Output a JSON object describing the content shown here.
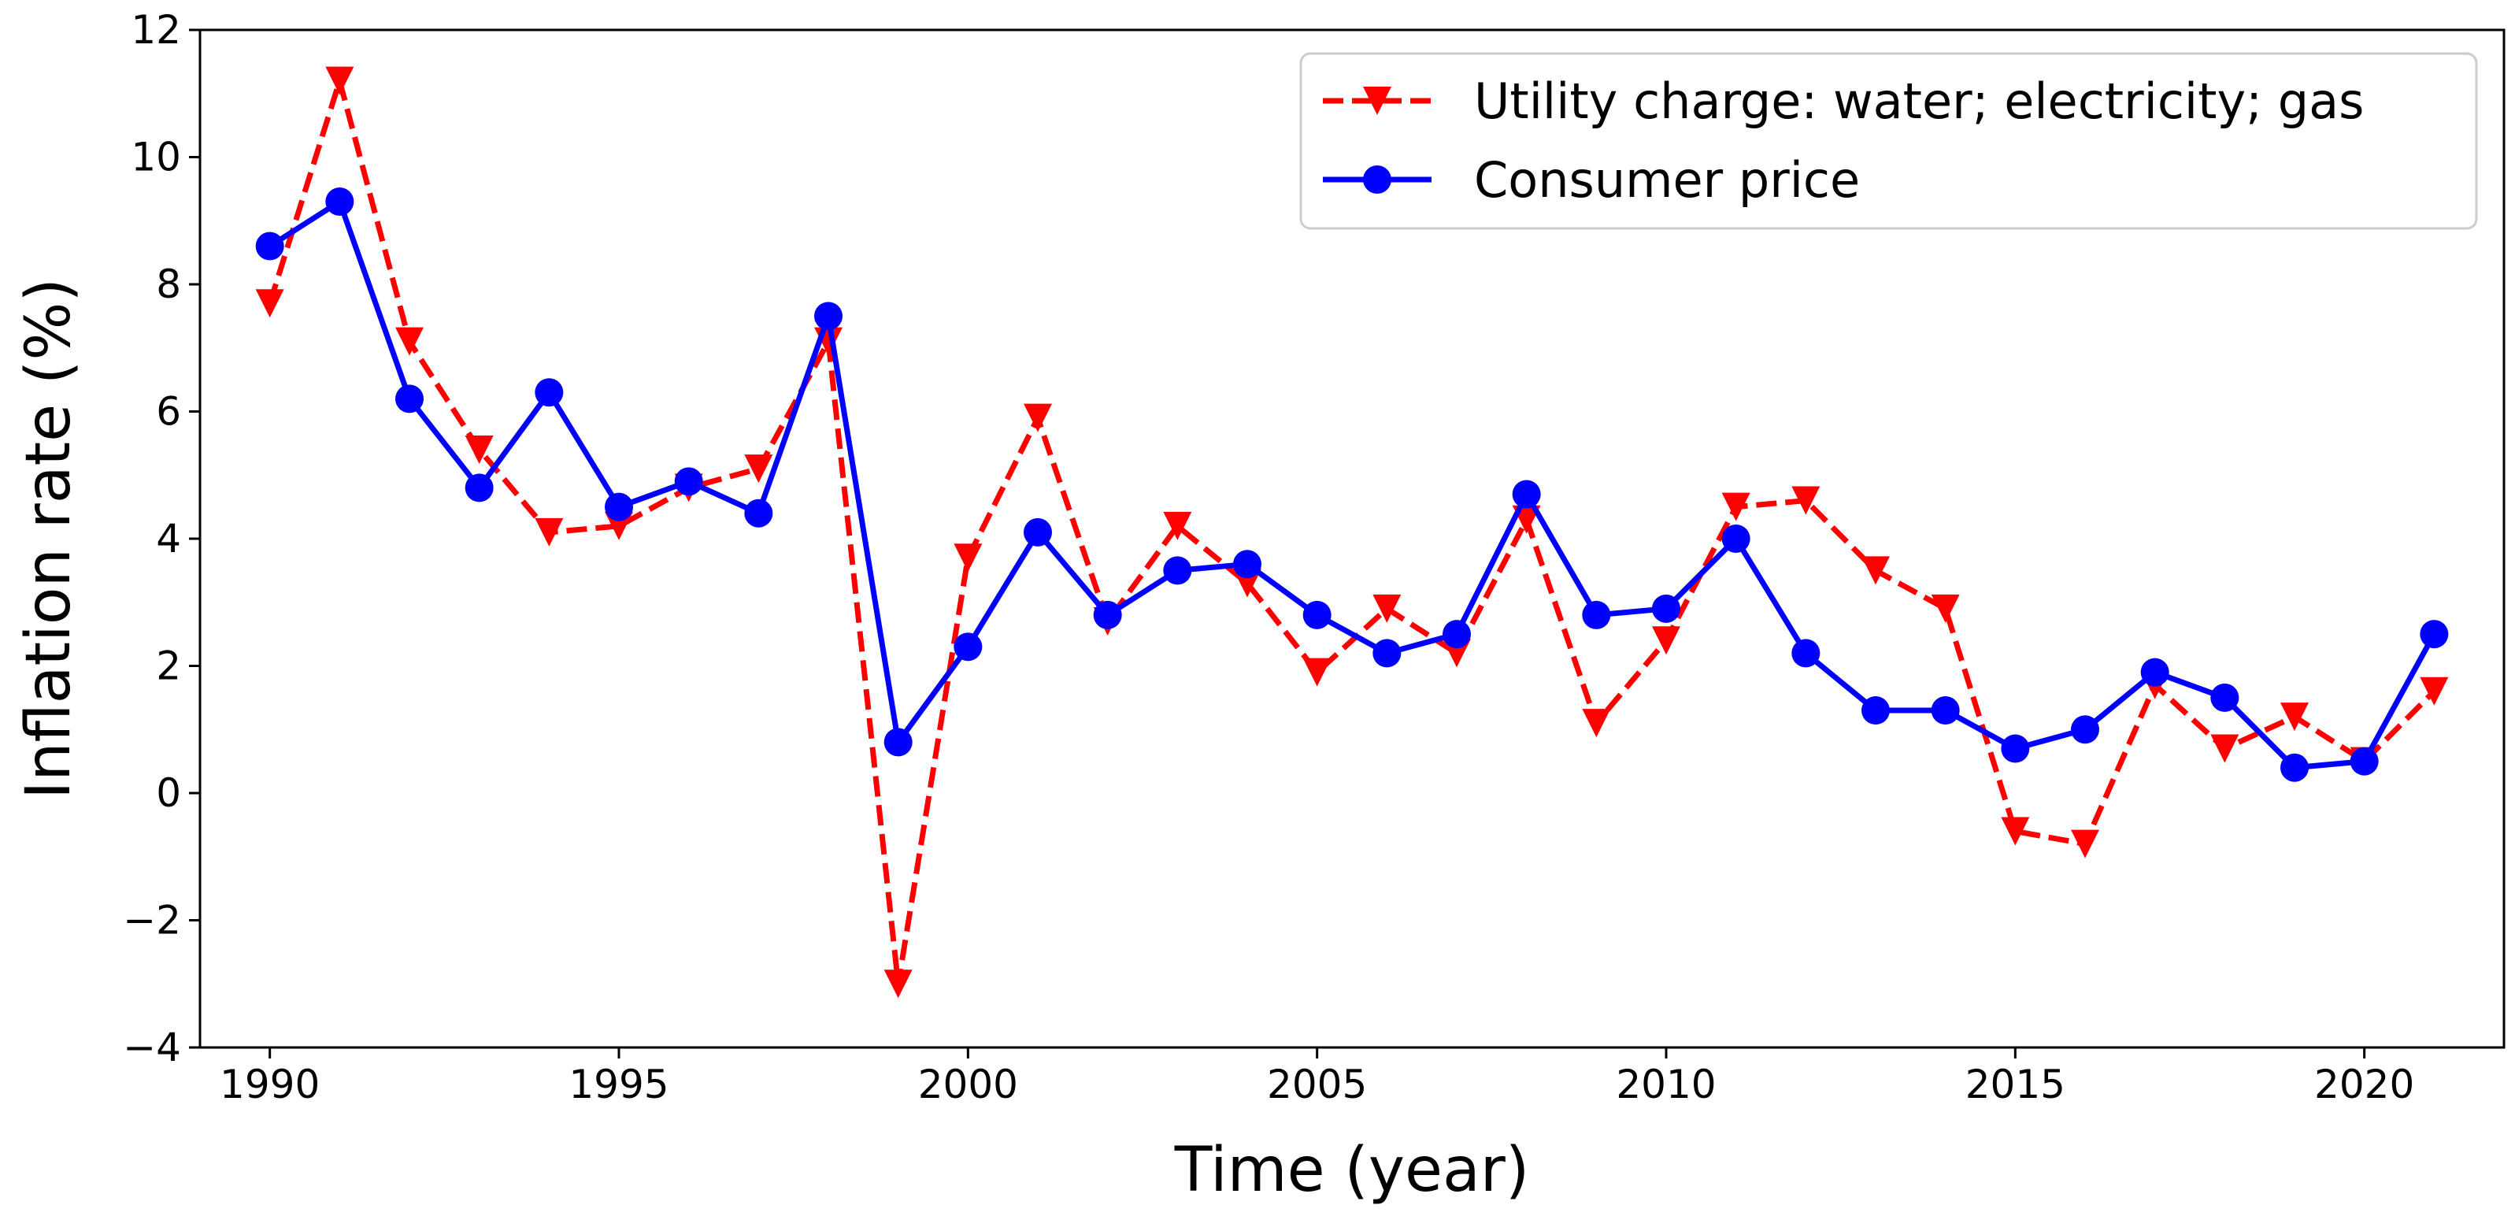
{
  "chart_data": {
    "type": "line",
    "title": "",
    "xlabel": "Time (year)",
    "ylabel": "Inflation rate (%)",
    "xlim": [
      1989.0,
      2022.0
    ],
    "ylim": [
      -4,
      12
    ],
    "xticks": [
      1990,
      1995,
      2000,
      2005,
      2010,
      2015,
      2020
    ],
    "xtick_labels": [
      "1990",
      "1995",
      "2000",
      "2005",
      "2010",
      "2015",
      "2020"
    ],
    "yticks": [
      -4,
      -2,
      0,
      2,
      4,
      6,
      8,
      10,
      12
    ],
    "ytick_labels": [
      "−4",
      "−2",
      "0",
      "2",
      "4",
      "6",
      "8",
      "10",
      "12"
    ],
    "grid": false,
    "legend_position": "top-right",
    "x": [
      1990,
      1991,
      1992,
      1993,
      1994,
      1995,
      1996,
      1997,
      1998,
      1999,
      2000,
      2001,
      2002,
      2003,
      2004,
      2005,
      2006,
      2007,
      2008,
      2009,
      2010,
      2011,
      2012,
      2013,
      2014,
      2015,
      2016,
      2017,
      2018,
      2019,
      2020,
      2021
    ],
    "series": [
      {
        "name": "Utility charge: water; electricity; gas",
        "color": "#ff0000",
        "line_style": "dashed",
        "marker": "triangle-down",
        "values": [
          7.7,
          11.2,
          7.1,
          5.4,
          4.1,
          4.2,
          4.8,
          5.1,
          7.1,
          -3.0,
          3.7,
          5.9,
          2.7,
          4.2,
          3.3,
          1.9,
          2.9,
          2.2,
          4.3,
          1.1,
          2.4,
          4.5,
          4.6,
          3.5,
          2.9,
          -0.6,
          -0.8,
          1.7,
          0.7,
          1.2,
          0.5,
          1.6
        ]
      },
      {
        "name": "Consumer price",
        "color": "#0000ff",
        "line_style": "solid",
        "marker": "circle",
        "values": [
          8.6,
          9.3,
          6.2,
          4.8,
          6.3,
          4.5,
          4.9,
          4.4,
          7.5,
          0.8,
          2.3,
          4.1,
          2.8,
          3.5,
          3.6,
          2.8,
          2.2,
          2.5,
          4.7,
          2.8,
          2.9,
          4.0,
          2.2,
          1.3,
          1.3,
          0.7,
          1.0,
          1.9,
          1.5,
          0.4,
          0.5,
          2.5
        ]
      }
    ]
  }
}
